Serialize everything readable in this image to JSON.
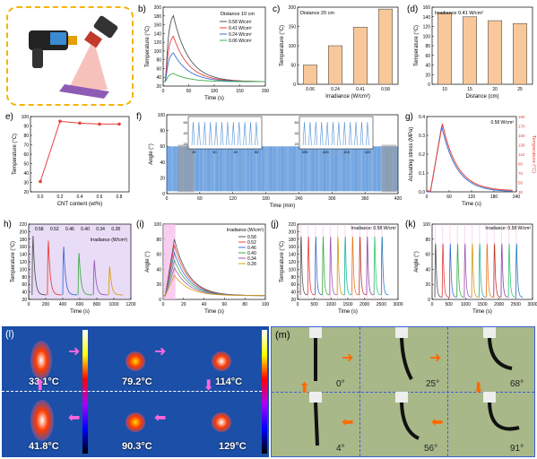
{
  "panels": {
    "a": {
      "label": ""
    },
    "b": {
      "label": "b)"
    },
    "c": {
      "label": "c)"
    },
    "d": {
      "label": "(d)"
    },
    "e": {
      "label": "e)"
    },
    "f": {
      "label": "f)"
    },
    "g": {
      "label": "g)"
    },
    "h": {
      "label": "h)"
    },
    "i": {
      "label": "(i)"
    },
    "j": {
      "label": "(j)"
    },
    "k": {
      "label": "(k)"
    },
    "l": {
      "label": "(l)"
    },
    "m": {
      "label": "(m)"
    }
  },
  "colors": {
    "bar": "#f8c89a",
    "bar_edge": "#555555",
    "series_red": "#e8413c",
    "series_blue": "#3b6fd6",
    "lavender": "#e9dcf6",
    "pink_band": "#f4b8ea",
    "ir_bg": "#1b4fa8",
    "leaf_bg": "#a8b889",
    "arrow_pink": "#ff66dd",
    "arrow_orange": "#ff6a00",
    "panel_a_border": "#f5b400"
  },
  "chart_data": [
    {
      "id": "b",
      "type": "line",
      "xlabel": "Time (s)",
      "ylabel": "Temperature (°C)",
      "xlim": [
        0,
        200
      ],
      "ylim": [
        20,
        200
      ],
      "xticks": [
        "0",
        "50",
        "100",
        "150",
        "200"
      ],
      "yticks": [
        "20",
        "40",
        "60",
        "80",
        "100",
        "120",
        "140",
        "160",
        "180",
        "200"
      ],
      "legend_title": "Distance 10 cm",
      "series": [
        {
          "name": "0.58 W/cm²",
          "color": "#555555",
          "peak": 190,
          "base": 30
        },
        {
          "name": "0.41 W/cm²",
          "color": "#e8413c",
          "peak": 140,
          "base": 30
        },
        {
          "name": "0.24 W/cm²",
          "color": "#3b6fd6",
          "peak": 100,
          "base": 30
        },
        {
          "name": "0.06 W/cm²",
          "color": "#3fae49",
          "peak": 50,
          "base": 30
        }
      ]
    },
    {
      "id": "c",
      "type": "bar",
      "title": "Distance 20 cm",
      "xlabel": "Irradiance (W/cm²)",
      "ylabel": "Temperature (°C)",
      "ylim": [
        0,
        200
      ],
      "yticks": [
        "0",
        "50",
        "100",
        "150",
        "200"
      ],
      "categories": [
        "0.06",
        "0.24",
        "0.41",
        "0.58"
      ],
      "values": [
        50,
        100,
        148,
        195
      ]
    },
    {
      "id": "d",
      "type": "bar",
      "title": "Irradiance 0.41 W/cm²",
      "xlabel": "Distance (cm)",
      "ylabel": "Temperature (°C)",
      "ylim": [
        0,
        160
      ],
      "yticks": [
        "0",
        "20",
        "40",
        "60",
        "80",
        "100",
        "120",
        "140",
        "160"
      ],
      "categories": [
        "10",
        "15",
        "20",
        "25"
      ],
      "values": [
        148,
        140,
        132,
        126
      ]
    },
    {
      "id": "e",
      "type": "line",
      "xlabel": "CNT content (wt%)",
      "ylabel": "Temperature (°C)",
      "xlim": [
        -0.1,
        0.9
      ],
      "ylim": [
        20,
        100
      ],
      "xticks": [
        "0.0",
        "0.2",
        "0.4",
        "0.6",
        "0.8"
      ],
      "yticks": [
        "20",
        "30",
        "40",
        "50",
        "60",
        "70",
        "80",
        "90",
        "100"
      ],
      "x": [
        0.0,
        0.2,
        0.4,
        0.6,
        0.8
      ],
      "y": [
        31,
        95,
        93,
        92,
        92
      ]
    },
    {
      "id": "f",
      "type": "line",
      "xlabel": "Time (min)",
      "ylabel": "Angle (°)",
      "xlim": [
        0,
        420
      ],
      "ylim": [
        0,
        100
      ],
      "xticks": [
        "0",
        "60",
        "120",
        "180",
        "240",
        "300",
        "360",
        "420"
      ],
      "yticks": [
        "0",
        "20",
        "40",
        "60",
        "80",
        "100"
      ],
      "cycle_max": 60,
      "inset_left_xticks": [
        "20",
        "30",
        "40",
        "50"
      ],
      "inset_right_xticks": [
        "390",
        "400",
        "410",
        "420"
      ],
      "inset_yticks": [
        "20",
        "40",
        "60"
      ]
    },
    {
      "id": "g",
      "type": "line",
      "title": "0.58 W/cm²",
      "xlabel": "Time (s)",
      "ylabel": "Actuating stress (MPa)",
      "ylabel2": "Temperature (°C)",
      "xlim": [
        0,
        240
      ],
      "ylim": [
        0,
        0.4
      ],
      "ylim2": [
        30,
        190
      ],
      "xticks": [
        "0",
        "60",
        "120",
        "180",
        "240"
      ],
      "yticks": [
        "0.0",
        "0.1",
        "0.2",
        "0.3",
        "0.4"
      ],
      "yticks2": [
        "30",
        "50",
        "70",
        "90",
        "110",
        "130",
        "150",
        "170",
        "190"
      ],
      "series": [
        {
          "name": "Actuating stress",
          "color": "#3b6fd6",
          "peak": 0.35,
          "peak_x": 40
        },
        {
          "name": "Temperature",
          "color": "#e8413c",
          "peak": 175,
          "peak_x": 42
        }
      ]
    },
    {
      "id": "h",
      "type": "line",
      "legend_title": "Irradiance (W/cm²)",
      "xlabel": "Time (s)",
      "ylabel": "Temperature (°C)",
      "xlim": [
        0,
        1200
      ],
      "ylim": [
        20,
        220
      ],
      "xticks": [
        "0",
        "200",
        "400",
        "600",
        "800",
        "1000",
        "1200"
      ],
      "yticks": [
        "20",
        "40",
        "60",
        "80",
        "100",
        "120",
        "140",
        "160",
        "180",
        "200",
        "220"
      ],
      "irradiance_labels": [
        "0.58",
        "0.52",
        "0.46",
        "0.40",
        "0.34",
        "0.28"
      ],
      "peaks": [
        198,
        185,
        168,
        150,
        130,
        112
      ],
      "colors": [
        "#555555",
        "#e8413c",
        "#3b6fd6",
        "#3fae49",
        "#9b59b6",
        "#d4a017"
      ]
    },
    {
      "id": "i",
      "type": "line",
      "legend_title": "Irradiance (W/cm²)",
      "xlabel": "Time (s)",
      "ylabel": "Angle (°)",
      "xlim": [
        0,
        100
      ],
      "ylim": [
        0,
        100
      ],
      "xticks": [
        "0",
        "20",
        "40",
        "60",
        "80",
        "100"
      ],
      "yticks": [
        "0",
        "20",
        "40",
        "60",
        "80",
        "100"
      ],
      "series": [
        {
          "name": "0.58",
          "color": "#555555",
          "peak": 80
        },
        {
          "name": "0.52",
          "color": "#e8413c",
          "peak": 72
        },
        {
          "name": "0.46",
          "color": "#3b6fd6",
          "peak": 62
        },
        {
          "name": "0.40",
          "color": "#3fae49",
          "peak": 52
        },
        {
          "name": "0.34",
          "color": "#9b59b6",
          "peak": 42
        },
        {
          "name": "0.28",
          "color": "#d4a017",
          "peak": 32
        }
      ]
    },
    {
      "id": "j",
      "type": "line",
      "title": "Irradiance: 0.58 W/cm²",
      "xlabel": "Time (s)",
      "ylabel": "Temperature (°C)",
      "xlim": [
        0,
        3000
      ],
      "ylim": [
        20,
        220
      ],
      "xticks": [
        "0",
        "500",
        "1000",
        "1500",
        "2000",
        "2500",
        "3000"
      ],
      "yticks": [
        "20",
        "40",
        "60",
        "80",
        "100",
        "120",
        "140",
        "160",
        "180",
        "200",
        "220"
      ],
      "cycles": 12,
      "peak": 200
    },
    {
      "id": "k",
      "type": "line",
      "title": "Irradiance: 0.58 W/cm²",
      "xlabel": "Time (s)",
      "ylabel": "Angle (°)",
      "xlim": [
        0,
        3000
      ],
      "ylim": [
        0,
        100
      ],
      "xticks": [
        "0",
        "500",
        "1000",
        "1500",
        "2000",
        "2500",
        "3000"
      ],
      "yticks": [
        "0",
        "20",
        "40",
        "60",
        "80",
        "100"
      ],
      "cycles": 12,
      "peak": 80
    }
  ],
  "panel_l": {
    "temps": [
      "33.1°C",
      "79.2°C",
      "114°C",
      "41.8°C",
      "90.3°C",
      "129°C"
    ]
  },
  "panel_m": {
    "angles": [
      "0°",
      "25°",
      "68°",
      "4°",
      "56°",
      "91°"
    ]
  }
}
